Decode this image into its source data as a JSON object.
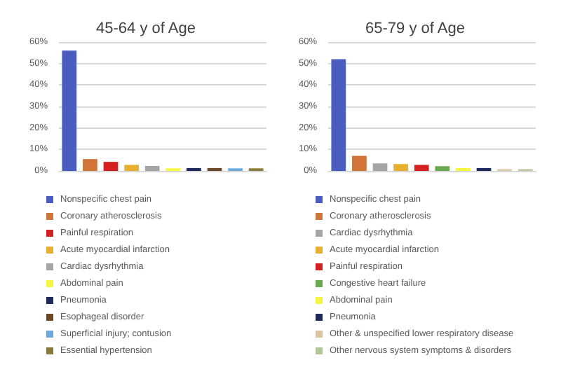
{
  "chart_data": [
    {
      "type": "bar",
      "title": "45-64 y of Age",
      "categories": [
        null,
        null,
        null,
        null,
        null,
        null,
        null,
        null,
        null,
        null
      ],
      "series": [
        {
          "name": "Nonspecific chest pain",
          "color": "#4a5cc0",
          "values": [
            56,
            null,
            null,
            null,
            null,
            null,
            null,
            null,
            null,
            null
          ]
        },
        {
          "name": "Coronary atherosclerosis",
          "color": "#d0743a",
          "values": [
            null,
            5.5,
            null,
            null,
            null,
            null,
            null,
            null,
            null,
            null
          ]
        },
        {
          "name": "Painful respiration",
          "color": "#d42020",
          "values": [
            null,
            null,
            4.2,
            null,
            null,
            null,
            null,
            null,
            null,
            null
          ]
        },
        {
          "name": "Acute myocardial infarction",
          "color": "#e8b030",
          "values": [
            null,
            null,
            null,
            2.8,
            null,
            null,
            null,
            null,
            null,
            null
          ]
        },
        {
          "name": "Cardiac dysrhythmia",
          "color": "#a5a5a5",
          "values": [
            null,
            null,
            null,
            null,
            2.3,
            null,
            null,
            null,
            null,
            null
          ]
        },
        {
          "name": "Abdominal pain",
          "color": "#f5f542",
          "values": [
            null,
            null,
            null,
            null,
            null,
            1.2,
            null,
            null,
            null,
            null
          ]
        },
        {
          "name": "Pneumonia",
          "color": "#1f2a5c",
          "values": [
            null,
            null,
            null,
            null,
            null,
            null,
            1.3,
            null,
            null,
            null
          ]
        },
        {
          "name": "Esophageal disorder",
          "color": "#6b4a2a",
          "values": [
            null,
            null,
            null,
            null,
            null,
            null,
            null,
            1.3,
            null,
            null
          ]
        },
        {
          "name": "Superficial injury; contusion",
          "color": "#6fa8dc",
          "values": [
            null,
            null,
            null,
            null,
            null,
            null,
            null,
            null,
            1.2,
            null
          ]
        },
        {
          "name": "Essential hypertension",
          "color": "#8a7a3a",
          "values": [
            null,
            null,
            null,
            null,
            null,
            null,
            null,
            null,
            null,
            1.2
          ]
        }
      ],
      "ylim": [
        0,
        60
      ],
      "yticks": [
        {
          "value": 0,
          "label": "0%"
        },
        {
          "value": 10,
          "label": "10%"
        },
        {
          "value": 20,
          "label": "20%"
        },
        {
          "value": 30,
          "label": "30%"
        },
        {
          "value": 40,
          "label": "40%"
        },
        {
          "value": 50,
          "label": "50%"
        },
        {
          "value": 60,
          "label": "60%"
        }
      ],
      "grid": "y",
      "legend": "bottom",
      "tick_labels": "y"
    },
    {
      "type": "bar",
      "title": "65-79 y of Age",
      "categories": [
        null,
        null,
        null,
        null,
        null,
        null,
        null,
        null,
        null,
        null
      ],
      "series": [
        {
          "name": "Nonspecific chest pain",
          "color": "#4a5cc0",
          "values": [
            52,
            null,
            null,
            null,
            null,
            null,
            null,
            null,
            null,
            null
          ]
        },
        {
          "name": "Coronary atherosclerosis",
          "color": "#d0743a",
          "values": [
            null,
            7,
            null,
            null,
            null,
            null,
            null,
            null,
            null,
            null
          ]
        },
        {
          "name": "Cardiac dysrhythmia",
          "color": "#a5a5a5",
          "values": [
            null,
            null,
            3.5,
            null,
            null,
            null,
            null,
            null,
            null,
            null
          ]
        },
        {
          "name": "Acute myocardial infarction",
          "color": "#e8b030",
          "values": [
            null,
            null,
            null,
            3.2,
            null,
            null,
            null,
            null,
            null,
            null
          ]
        },
        {
          "name": "Painful respiration",
          "color": "#d42020",
          "values": [
            null,
            null,
            null,
            null,
            2.8,
            null,
            null,
            null,
            null,
            null
          ]
        },
        {
          "name": "Congestive heart failure",
          "color": "#6aa84f",
          "values": [
            null,
            null,
            null,
            null,
            null,
            2.2,
            null,
            null,
            null,
            null
          ]
        },
        {
          "name": "Abdominal pain",
          "color": "#f5f542",
          "values": [
            null,
            null,
            null,
            null,
            null,
            null,
            1.3,
            null,
            null,
            null
          ]
        },
        {
          "name": "Pneumonia",
          "color": "#1f2a5c",
          "values": [
            null,
            null,
            null,
            null,
            null,
            null,
            null,
            1.3,
            null,
            null
          ]
        },
        {
          "name": "Other & unspecified lower respiratory disease",
          "color": "#d9c3a0",
          "values": [
            null,
            null,
            null,
            null,
            null,
            null,
            null,
            null,
            0.8,
            null
          ]
        },
        {
          "name": "Other nervous system symptoms & disorders",
          "color": "#b5c59a",
          "values": [
            null,
            null,
            null,
            null,
            null,
            null,
            null,
            null,
            null,
            0.8
          ]
        }
      ],
      "ylim": [
        0,
        60
      ],
      "yticks": [
        {
          "value": 0,
          "label": "0%"
        },
        {
          "value": 10,
          "label": "10%"
        },
        {
          "value": 20,
          "label": "20%"
        },
        {
          "value": 30,
          "label": "30%"
        },
        {
          "value": 40,
          "label": "40%"
        },
        {
          "value": 50,
          "label": "50%"
        },
        {
          "value": 60,
          "label": "60%"
        }
      ],
      "grid": "y",
      "legend": "bottom",
      "tick_labels": "y"
    }
  ]
}
